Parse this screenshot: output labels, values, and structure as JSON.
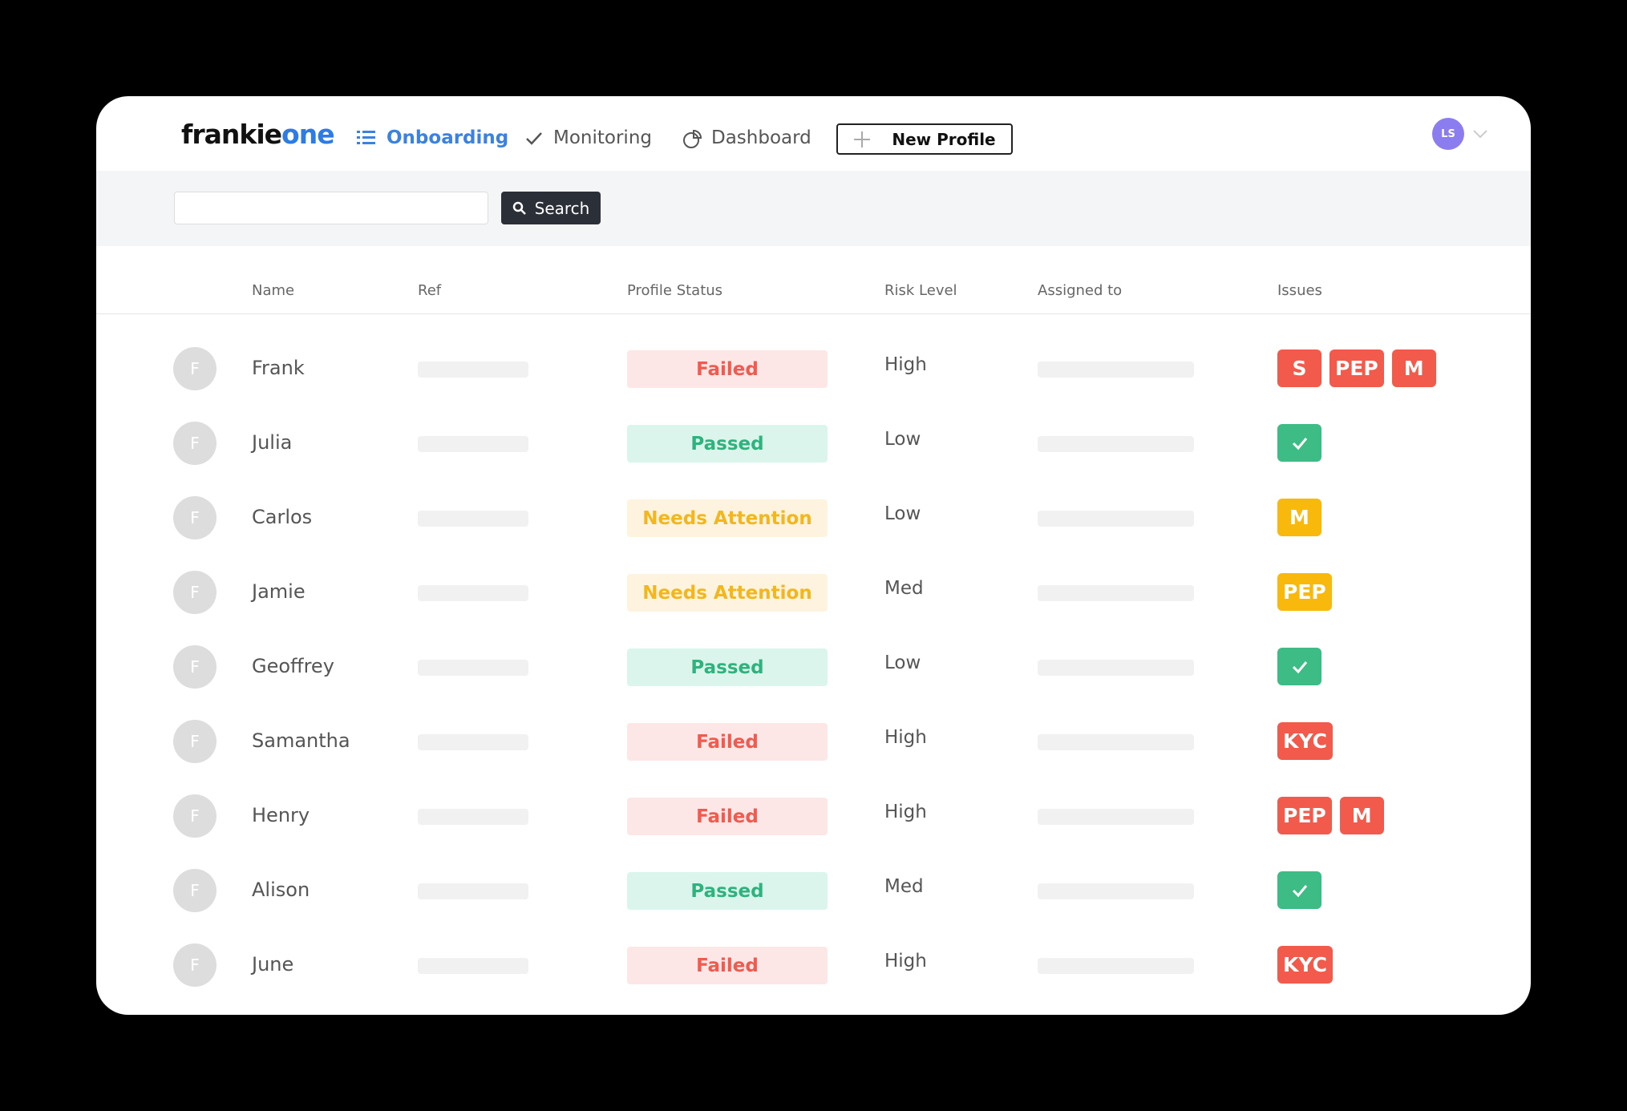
{
  "header": {
    "logo_part1": "frankie",
    "logo_part2": "one",
    "nav": [
      "Onboarding",
      "Monitoring",
      "Dashboard"
    ],
    "new_profile": "New Profile",
    "avatar": "LS"
  },
  "search": {
    "button": "Search"
  },
  "table": {
    "columns": [
      "Name",
      "Ref",
      "Profile Status",
      "Risk Level",
      "Assigned to",
      "Issues"
    ],
    "rows": [
      {
        "avatar": "F",
        "name": "Frank",
        "status": "Failed",
        "status_color": "#ef5b4f",
        "status_bg": "#fde6e6",
        "risk": "High",
        "issues": [
          "S",
          "PEP",
          "M"
        ],
        "issue_color": "#f25a4c"
      },
      {
        "avatar": "F",
        "name": "Julia",
        "status": "Passed",
        "status_color": "#2fb37e",
        "status_bg": "#dcf5ec",
        "risk": "Low",
        "issues": [],
        "issue_color": "#3dbd85"
      },
      {
        "avatar": "F",
        "name": "Carlos",
        "status": "Needs Attention",
        "status_color": "#f3b61c",
        "status_bg": "#fef3df",
        "risk": "Low",
        "issues": [
          "M"
        ],
        "issue_color": "#f9b80c"
      },
      {
        "avatar": "F",
        "name": "Jamie",
        "status": "Needs Attention",
        "status_color": "#f3b61c",
        "status_bg": "#fef3df",
        "risk": "Med",
        "issues": [
          "PEP"
        ],
        "issue_color": "#f9b80c"
      },
      {
        "avatar": "F",
        "name": "Geoffrey",
        "status": "Passed",
        "status_color": "#2fb37e",
        "status_bg": "#dcf5ec",
        "risk": "Low",
        "issues": [],
        "issue_color": "#3dbd85"
      },
      {
        "avatar": "F",
        "name": "Samantha",
        "status": "Failed",
        "status_color": "#ef5b4f",
        "status_bg": "#fde6e6",
        "risk": "High",
        "issues": [
          "KYC"
        ],
        "issue_color": "#f25a4c"
      },
      {
        "avatar": "F",
        "name": "Henry",
        "status": "Failed",
        "status_color": "#ef5b4f",
        "status_bg": "#fde6e6",
        "risk": "High",
        "issues": [
          "PEP",
          "M"
        ],
        "issue_color": "#f25a4c"
      },
      {
        "avatar": "F",
        "name": "Alison",
        "status": "Passed",
        "status_color": "#2fb37e",
        "status_bg": "#dcf5ec",
        "risk": "Med",
        "issues": [],
        "issue_color": "#3dbd85"
      },
      {
        "avatar": "F",
        "name": "June",
        "status": "Failed",
        "status_color": "#ef5b4f",
        "status_bg": "#fde6e6",
        "risk": "High",
        "issues": [
          "KYC"
        ],
        "issue_color": "#f25a4c"
      }
    ]
  }
}
